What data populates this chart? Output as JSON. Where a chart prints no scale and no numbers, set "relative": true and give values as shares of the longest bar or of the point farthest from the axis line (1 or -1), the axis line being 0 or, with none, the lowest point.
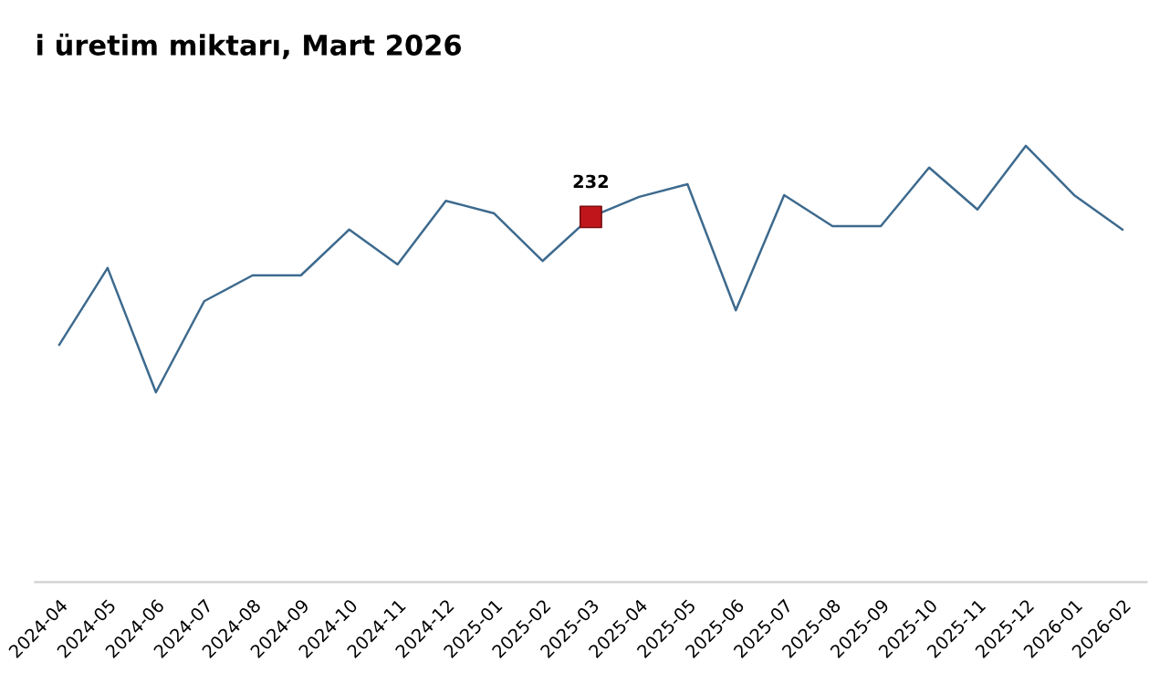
{
  "chart_data": {
    "type": "line",
    "title": "i üretim miktarı, Mart 2026",
    "relative": true,
    "grid": false,
    "legend": false,
    "categories": [
      "2024-04",
      "2024-05",
      "2024-06",
      "2024-07",
      "2024-08",
      "2024-09",
      "2024-10",
      "2024-11",
      "2024-12",
      "2025-01",
      "2025-02",
      "2025-03",
      "2025-04",
      "2025-05",
      "2025-06",
      "2025-07",
      "2025-08",
      "2025-09",
      "2025-10",
      "2025-11",
      "2025-12",
      "2026-01",
      "2026-02"
    ],
    "series": [
      {
        "color": "#3d6a8e",
        "marker": "none",
        "line_style": "solid",
        "values": [
          0.544,
          0.72,
          0.435,
          0.644,
          0.703,
          0.703,
          0.808,
          0.728,
          0.874,
          0.845,
          0.736,
          0.837,
          0.883,
          0.912,
          0.623,
          0.887,
          0.816,
          0.816,
          0.95,
          0.854,
          1,
          0.887,
          0.808
        ]
      },
      {
        "type": "scatter",
        "color": "#c0161b",
        "marker": "square",
        "values": [
          null,
          null,
          null,
          null,
          null,
          null,
          null,
          null,
          null,
          null,
          null,
          0.837,
          null,
          null,
          null,
          null,
          null,
          null,
          null,
          null,
          null,
          null,
          null
        ]
      }
    ],
    "annotations": [
      {
        "text": "232",
        "x": "2025-03",
        "y": 0.837
      }
    ]
  }
}
